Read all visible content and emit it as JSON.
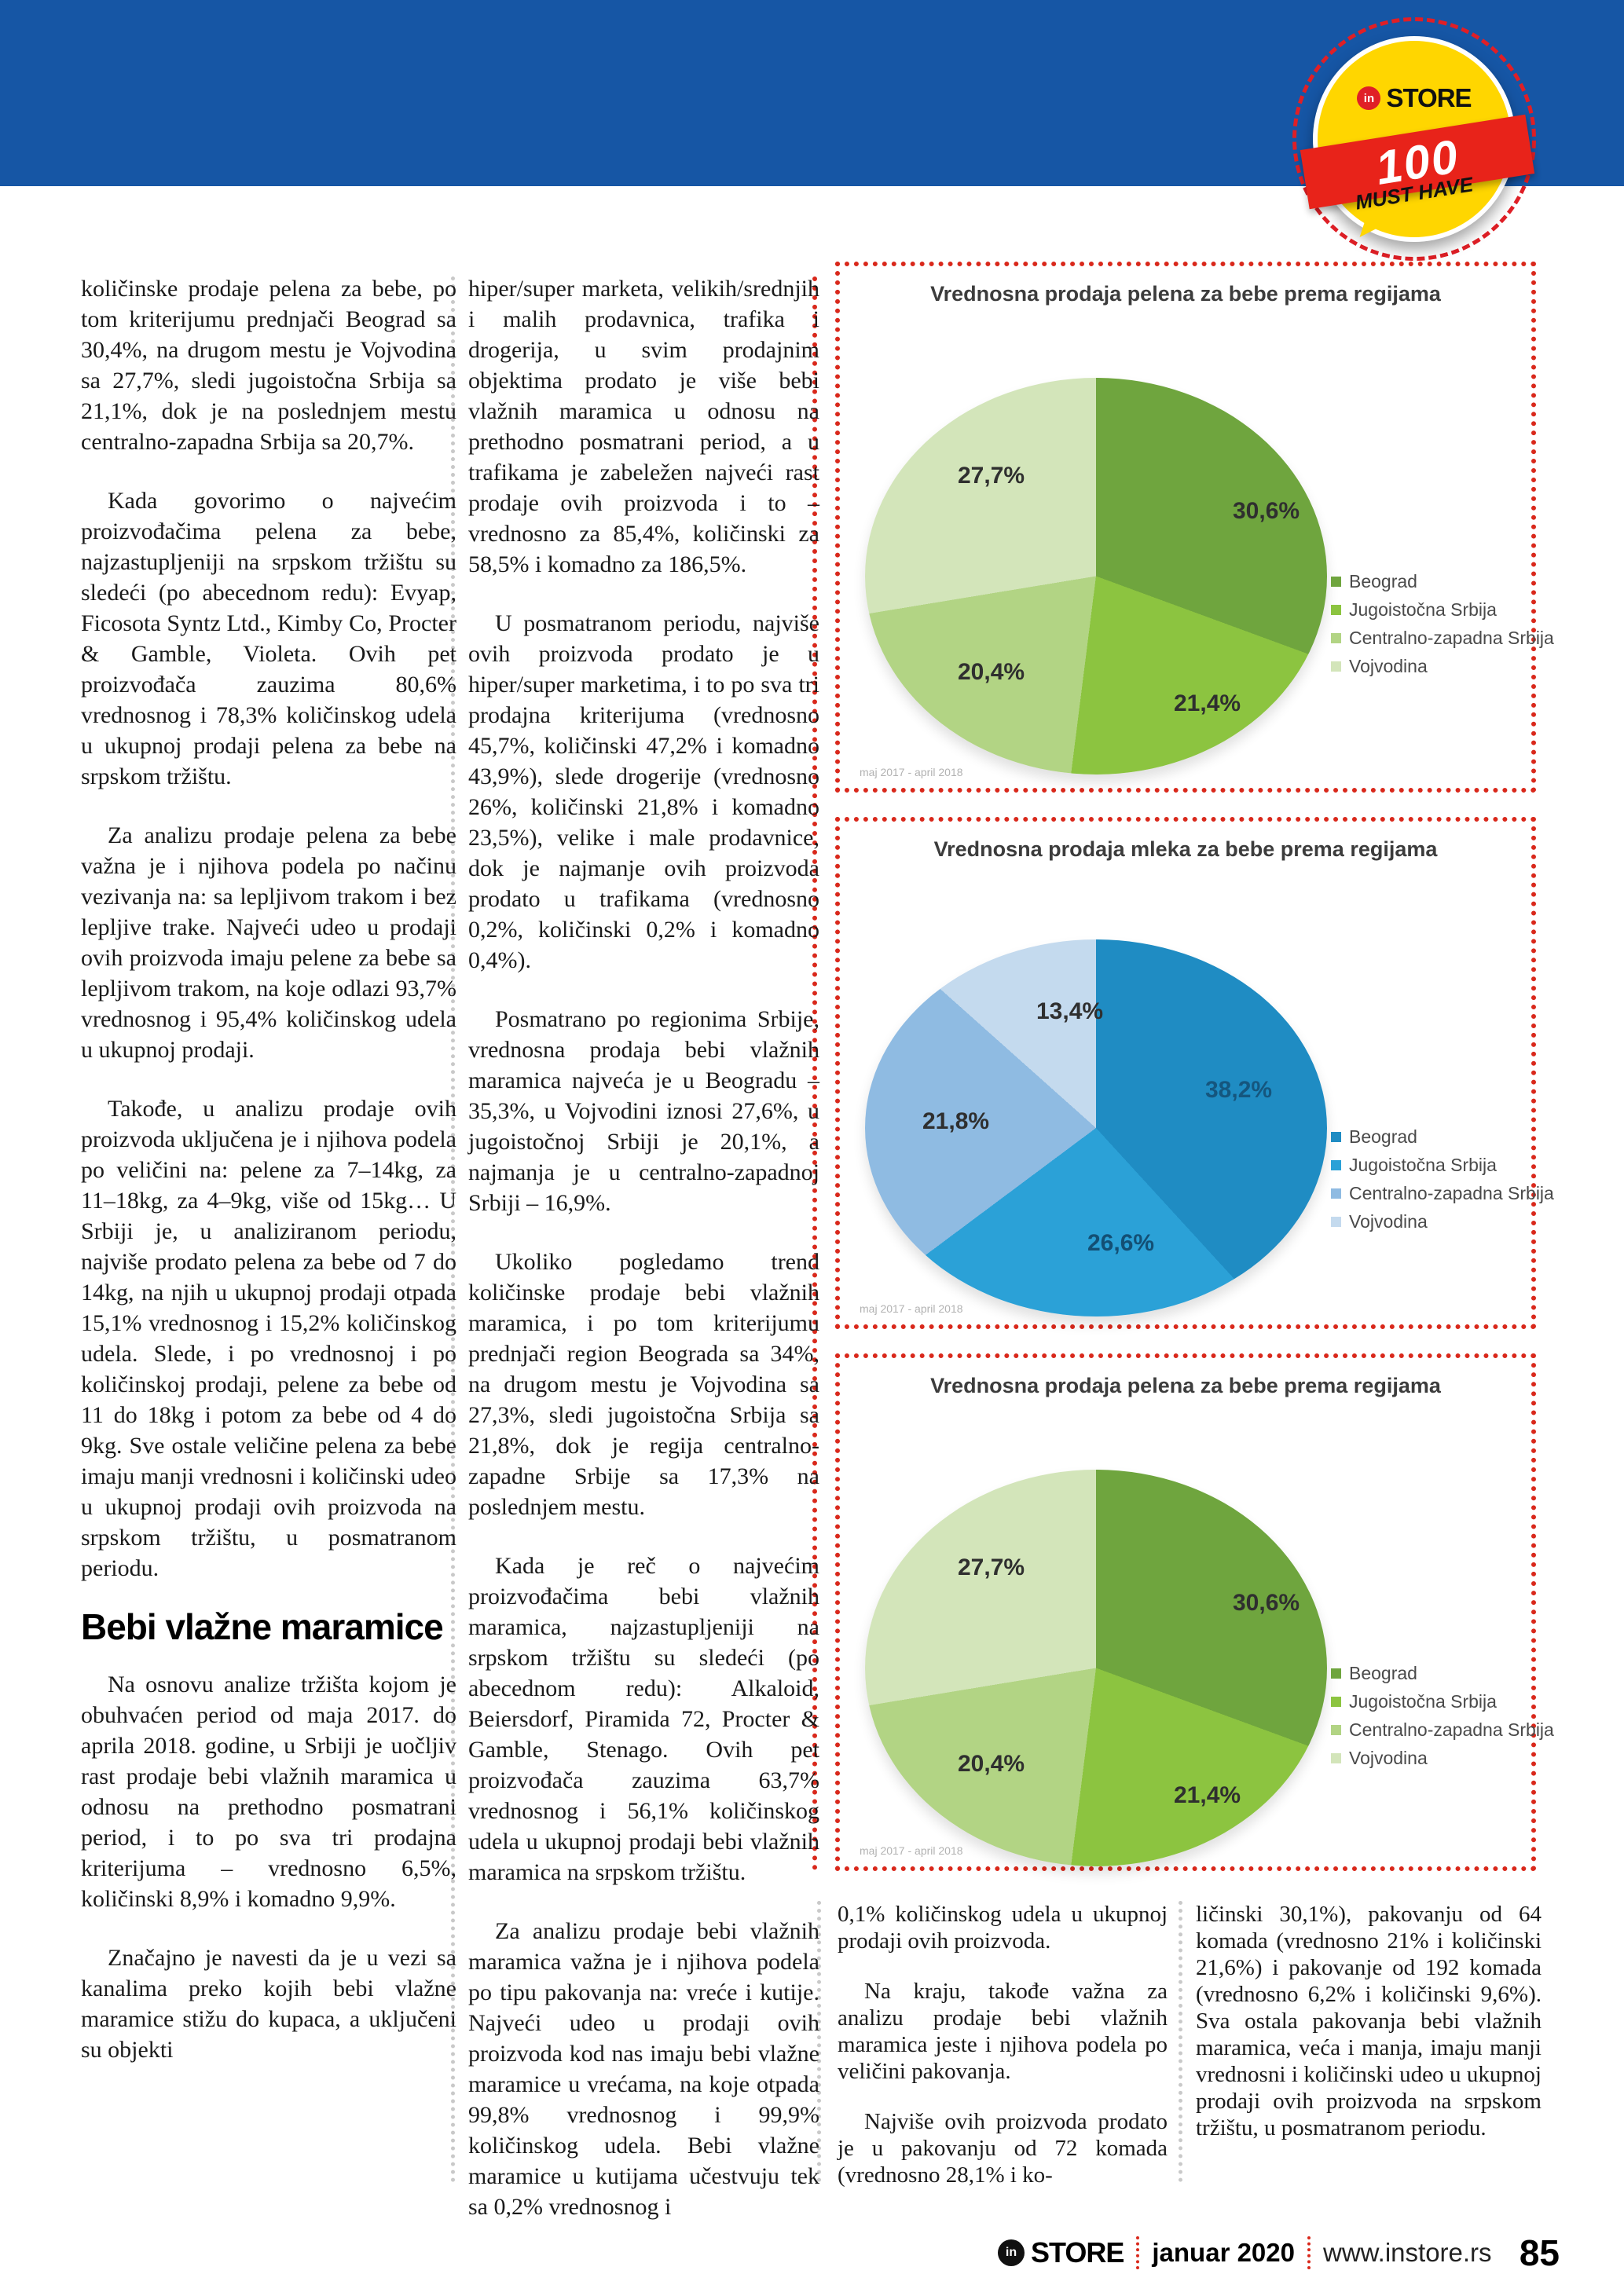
{
  "badge": {
    "in": "in",
    "store": "STORE",
    "number": "100",
    "tagline": "MUST HAVE"
  },
  "columns": {
    "col1": {
      "p1": "količinske prodaje pelena za bebe, po tom kriterijumu prednjači Beograd sa 30,4%, na drugom mestu je Vojvodina sa 27,7%, sledi jugoistočna Srbija sa 21,1%, dok je na poslednjem mestu centralno-zapadna Srbija sa 20,7%.",
      "p2": "Kada govorimo o najvećim proizvođačima pelena za bebe, najzastupljeniji na srpskom tržištu su sledeći (po abecednom redu): Evyap, Ficosota Syntz Ltd., Kimby Co, Procter & Gamble, Violeta. Ovih pet proizvođača zauzima 80,6% vrednosnog i 78,3% količinskog udela u ukupnoj prodaji pelena za bebe na srpskom tržištu.",
      "p3": "Za analizu prodaje pelena za bebe važna je i njihova podela po načinu vezivanja na: sa lepljivom trakom i bez lepljive trake. Najveći udeo u prodaji ovih proizvoda imaju pelene za bebe sa lepljivom trakom, na koje odlazi 93,7% vrednosnog i 95,4% količinskog udela u ukupnoj prodaji.",
      "p4": "Takođe, u analizu prodaje ovih proizvoda uključena je i njihova podela po veličini na: pelene za 7–14kg, za 11–18kg, za 4–9kg, više od 15kg… U Srbiji je, u analiziranom periodu, najviše prodato pelena za bebe od 7 do 14kg, na njih u ukupnoj prodaji otpada 15,1% vrednosnog i 15,2% količinskog udela. Slede, i po vrednosnoj i po količinskoj prodaji, pelene za bebe od 11 do 18kg i potom za bebe od 4 do 9kg. Sve ostale veličine pelena za bebe imaju manji vrednosni i količinski udeo u ukupnoj prodaji ovih proizvoda na srpskom tržištu, u posmatranom periodu.",
      "heading": "Bebi vlažne maramice",
      "p5": "Na osnovu analize tržišta kojom je obuhvaćen period od maja 2017. do aprila 2018. godine, u Srbiji je uočljiv rast prodaje bebi vlažnih maramica u odnosu na prethodno posmatrani period, i to po sva tri prodajna kriterijuma – vrednosno 6,5%, količinski 8,9% i komadno 9,9%.",
      "p6": "Značajno je navesti da je u vezi sa kanalima preko kojih bebi vlažne maramice stižu do kupaca, a uključeni su objekti"
    },
    "col2": {
      "p1": "hiper/super marketa, velikih/srednjih i malih prodavnica, trafika i drogerija, u svim prodajnim objektima prodato je više bebi vlažnih maramica u odnosu na prethodno posmatrani period, a u trafikama je zabeležen najveći rast prodaje ovih proizvoda i to – vrednosno za 85,4%, količinski za 58,5% i komadno za 186,5%.",
      "p2": "U posmatranom periodu, najviše ovih proizvoda prodato je u hiper/super marketima, i to po sva tri prodajna kriterijuma (vrednosno 45,7%, količinski 47,2% i komadno 43,9%), slede drogerije (vrednosno 26%, količinski 21,8% i komadno 23,5%), velike i male prodavnice, dok je najmanje ovih proizvoda prodato u trafikama (vrednosno 0,2%, količinski 0,2% i komadno 0,4%).",
      "p3": "Posmatrano po regionima Srbije, vrednosna prodaja bebi vlažnih maramica najveća je u Beogradu – 35,3%, u Vojvodini iznosi 27,6%, u jugoistočnoj Srbiji je 20,1%, a najmanja je u centralno-zapadnoj Srbiji – 16,9%.",
      "p4": "Ukoliko pogledamo trend količinske prodaje bebi vlažnih maramica, i po tom kriterijumu prednjači region Beograda sa 34%, na drugom mestu je Vojvodina sa 27,3%, sledi jugoistočna Srbija sa 21,8%, dok je regija centralno-zapadne Srbije sa 17,3% na poslednjem mestu.",
      "p5": "Kada je reč o najvećim proizvođačima bebi vlažnih maramica, najzastupljeniji na srpskom tržištu su sledeći (po abecednom redu): Alkaloid, Beiersdorf, Piramida 72, Procter & Gamble, Stenago. Ovih pet proizvođača zauzima 63,7% vrednosnog i 56,1% količinskog udela u ukupnoj prodaji bebi vlažnih maramica na srpskom tržištu.",
      "p6": "Za analizu prodaje bebi vlažnih maramica važna je i njihova podela po tipu pakovanja na: vreće i kutije. Najveći udeo u prodaji ovih proizvoda kod nas imaju bebi vlažne maramice u vrećama, na koje otpada 99,8% vrednosnog i 99,9% količinskog udela. Bebi vlažne maramice u kutijama učestvuju tek sa 0,2% vrednosnog i"
    },
    "col3": {
      "p1": "0,1% količinskog udela u ukupnoj prodaji ovih proizvoda.",
      "p2": "Na kraju, takođe važna za analizu prodaje bebi vlažnih maramica jeste i njihova podela po veličini pakovanja.",
      "p3": "Najviše ovih proizvoda prodato je u pakovanju od 72 komada (vrednosno 28,1% i ko-"
    },
    "col4": {
      "p1": "ličinski 30,1%), pakovanju od 64 komada (vrednosno 21% i količinski 21,6%) i pakovanje od 192 komada (vrednosno 6,2% i količinski 9,6%). Sva ostala pakovanja bebi vlažnih maramica, veća i manja, imaju manji vrednosni i količinski udeo u ukupnoj prodaji ovih proizvoda na srpskom tržištu, u posmatranom periodu."
    }
  },
  "chart_data": [
    {
      "type": "pie",
      "title": "Vrednosna prodaja pelena za bebe prema regijama",
      "labels": [
        "Beograd",
        "Jugoistočna Srbija",
        "Centralno-zapadna Srbija",
        "Vojvodina"
      ],
      "values": [
        30.6,
        21.4,
        20.4,
        27.7
      ],
      "value_labels": [
        "30,6%",
        "21,4%",
        "20,4%",
        "27,7%"
      ],
      "colors": [
        "#6fa53e",
        "#8cc440",
        "#b2d484",
        "#d3e5ba"
      ],
      "caption": "maj 2017 - april 2018",
      "legend_position": "bottom-right"
    },
    {
      "type": "pie",
      "title": "Vrednosna prodaja mleka za bebe prema regijama",
      "labels": [
        "Beograd",
        "Jugoistočna Srbija",
        "Centralno-zapadna Srbija",
        "Vojvodina"
      ],
      "values": [
        38.2,
        26.6,
        21.8,
        13.4
      ],
      "value_labels": [
        "38,2%",
        "26,6%",
        "21,8%",
        "13,4%"
      ],
      "colors": [
        "#1f8cc3",
        "#2ba1d7",
        "#8fbbe2",
        "#c4daee"
      ],
      "caption": "maj 2017 - april 2018",
      "legend_position": "bottom-right"
    },
    {
      "type": "pie",
      "title": "Vrednosna prodaja pelena za bebe prema regijama",
      "labels": [
        "Beograd",
        "Jugoistočna Srbija",
        "Centralno-zapadna Srbija",
        "Vojvodina"
      ],
      "values": [
        30.6,
        21.4,
        20.4,
        27.7
      ],
      "value_labels": [
        "30,6%",
        "21,4%",
        "20,4%",
        "27,7%"
      ],
      "colors": [
        "#6fa53e",
        "#8cc440",
        "#b2d484",
        "#d3e5ba"
      ],
      "caption": "maj 2017 - april 2018",
      "legend_position": "bottom-right"
    }
  ],
  "footer": {
    "logo_in": "in",
    "logo_store": "STORE",
    "issue": "januar 2020",
    "website": "www.instore.rs",
    "page_number": "85"
  }
}
